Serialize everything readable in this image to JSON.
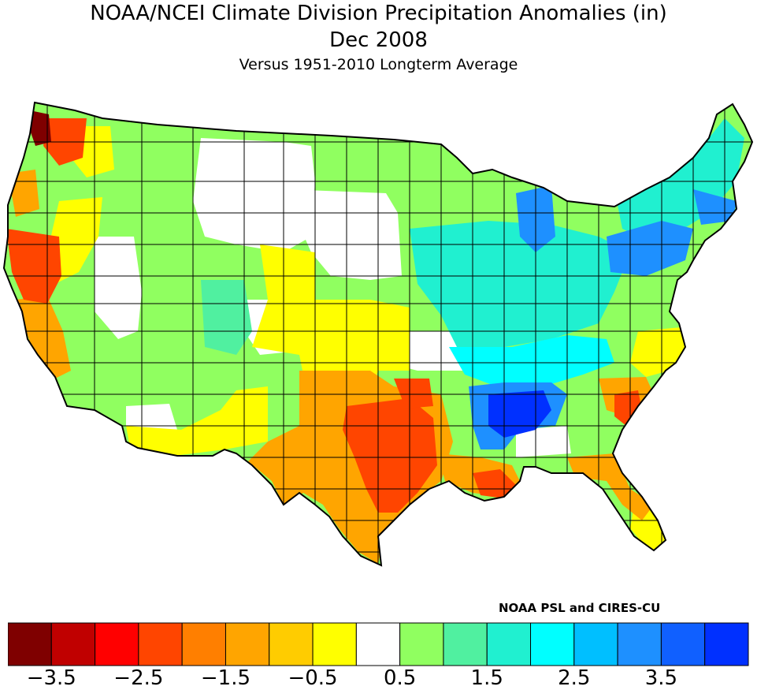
{
  "header": {
    "title": "NOAA/NCEI Climate Division Precipitation Anomalies (in)",
    "period": "Dec 2008",
    "subtitle": "Versus 1951-2010 Longterm Average"
  },
  "credit": "NOAA PSL and CIRES-CU",
  "legend": {
    "bin_colors": [
      "#7f0000",
      "#c00000",
      "#ff0000",
      "#ff4500",
      "#ff7f00",
      "#ffa500",
      "#ffcc00",
      "#ffff00",
      "#ffffff",
      "#90ff60",
      "#50f0a0",
      "#20f0d0",
      "#00ffff",
      "#00bfff",
      "#1e90ff",
      "#1060ff",
      "#0030ff"
    ],
    "tick_labels": [
      "-3.5",
      "-2.5",
      "-1.5",
      "-0.5",
      "0.5",
      "1.5",
      "2.5",
      "3.5"
    ]
  },
  "map": {
    "region": "Contiguous United States climate divisions",
    "outline_color": "#000000",
    "anomaly_colors": {
      "extreme_dry": "#7f0000",
      "very_dry": "#ff4500",
      "dry": "#ffa500",
      "slightly_dry": "#ffff00",
      "near_normal": "#ffffff",
      "slightly_wet": "#90ff60",
      "wet": "#00ffff",
      "very_wet": "#1e90ff",
      "extreme_wet": "#0030ff"
    }
  }
}
